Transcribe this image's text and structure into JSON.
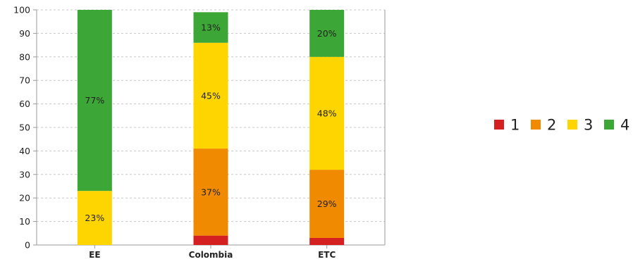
{
  "chart_data": {
    "type": "bar",
    "stacked": true,
    "categories": [
      "EE",
      "Colombia",
      "ETC"
    ],
    "series": [
      {
        "name": "1",
        "color": "#d42020",
        "values": [
          0,
          4,
          3
        ],
        "labels": [
          "",
          "",
          ""
        ]
      },
      {
        "name": "2",
        "color": "#f08a00",
        "values": [
          0,
          37,
          29
        ],
        "labels": [
          "",
          "37%",
          "29%"
        ]
      },
      {
        "name": "3",
        "color": "#ffd500",
        "values": [
          23,
          45,
          48
        ],
        "labels": [
          "23%",
          "45%",
          "48%"
        ]
      },
      {
        "name": "4",
        "color": "#3ca636",
        "values": [
          77,
          13,
          20
        ],
        "labels": [
          "77%",
          "13%",
          "20%"
        ]
      }
    ],
    "ylim": [
      0,
      100
    ],
    "yticks": [
      0,
      10,
      20,
      30,
      40,
      50,
      60,
      70,
      80,
      90,
      100
    ],
    "grid": true,
    "legend_position": "right",
    "title": "",
    "xlabel": "",
    "ylabel": ""
  }
}
